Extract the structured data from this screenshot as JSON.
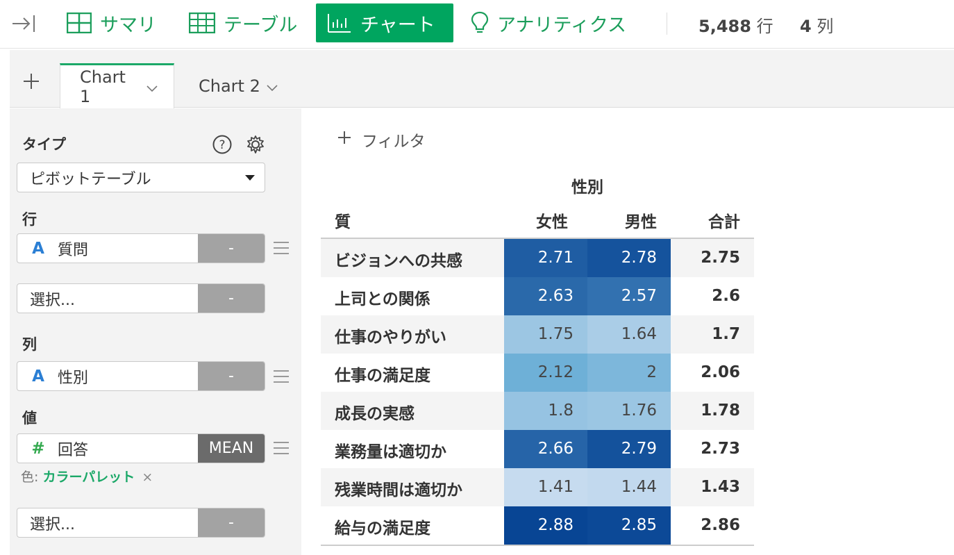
{
  "toolbar": {
    "tabs": [
      {
        "label": "サマリ"
      },
      {
        "label": "テーブル"
      },
      {
        "label": "チャート"
      },
      {
        "label": "アナリティクス"
      }
    ],
    "rows_count": "5,488",
    "rows_unit": "行",
    "cols_count": "4",
    "cols_unit": "列"
  },
  "chart_tabs": [
    {
      "label": "Chart 1"
    },
    {
      "label": "Chart 2"
    }
  ],
  "panel": {
    "type_label": "タイプ",
    "type_value": "ピボットテーブル",
    "row_label": "行",
    "row_field": "質問",
    "row_agg": "-",
    "row_select": "選択...",
    "row_select_agg": "-",
    "col_label": "列",
    "col_field": "性別",
    "col_agg": "-",
    "value_label": "値",
    "value_field": "回答",
    "value_agg": "MEAN",
    "color_prefix": "色:",
    "color_link": "カラーパレット",
    "color_remove": "×",
    "value_select": "選択...",
    "value_select_agg": "-",
    "type_glyph_attr": "A",
    "type_glyph_num": "#"
  },
  "main": {
    "filter_label": "フィルタ"
  },
  "chart_data": {
    "type": "table",
    "column_group": "性別",
    "row_header": "質問",
    "columns": [
      "女性",
      "男性"
    ],
    "total_header": "合計",
    "rows": [
      {
        "label": "ビジョンへの共感",
        "values": [
          2.71,
          2.78
        ],
        "total": 2.75
      },
      {
        "label": "上司との関係",
        "values": [
          2.63,
          2.57
        ],
        "total": 2.6
      },
      {
        "label": "仕事のやりがい",
        "values": [
          1.75,
          1.64
        ],
        "total": 1.7
      },
      {
        "label": "仕事の満足度",
        "values": [
          2.12,
          2
        ],
        "total": 2.06
      },
      {
        "label": "成長の実感",
        "values": [
          1.8,
          1.76
        ],
        "total": 1.78
      },
      {
        "label": "業務量は適切か",
        "values": [
          2.66,
          2.79
        ],
        "total": 2.73
      },
      {
        "label": "残業時間は適切か",
        "values": [
          1.41,
          1.44
        ],
        "total": 1.43
      },
      {
        "label": "給与の満足度",
        "values": [
          2.88,
          2.85
        ],
        "total": 2.86
      }
    ],
    "color_scale": {
      "low": "#c6dbef",
      "mid": "#6baed6",
      "high": "#084594"
    }
  }
}
